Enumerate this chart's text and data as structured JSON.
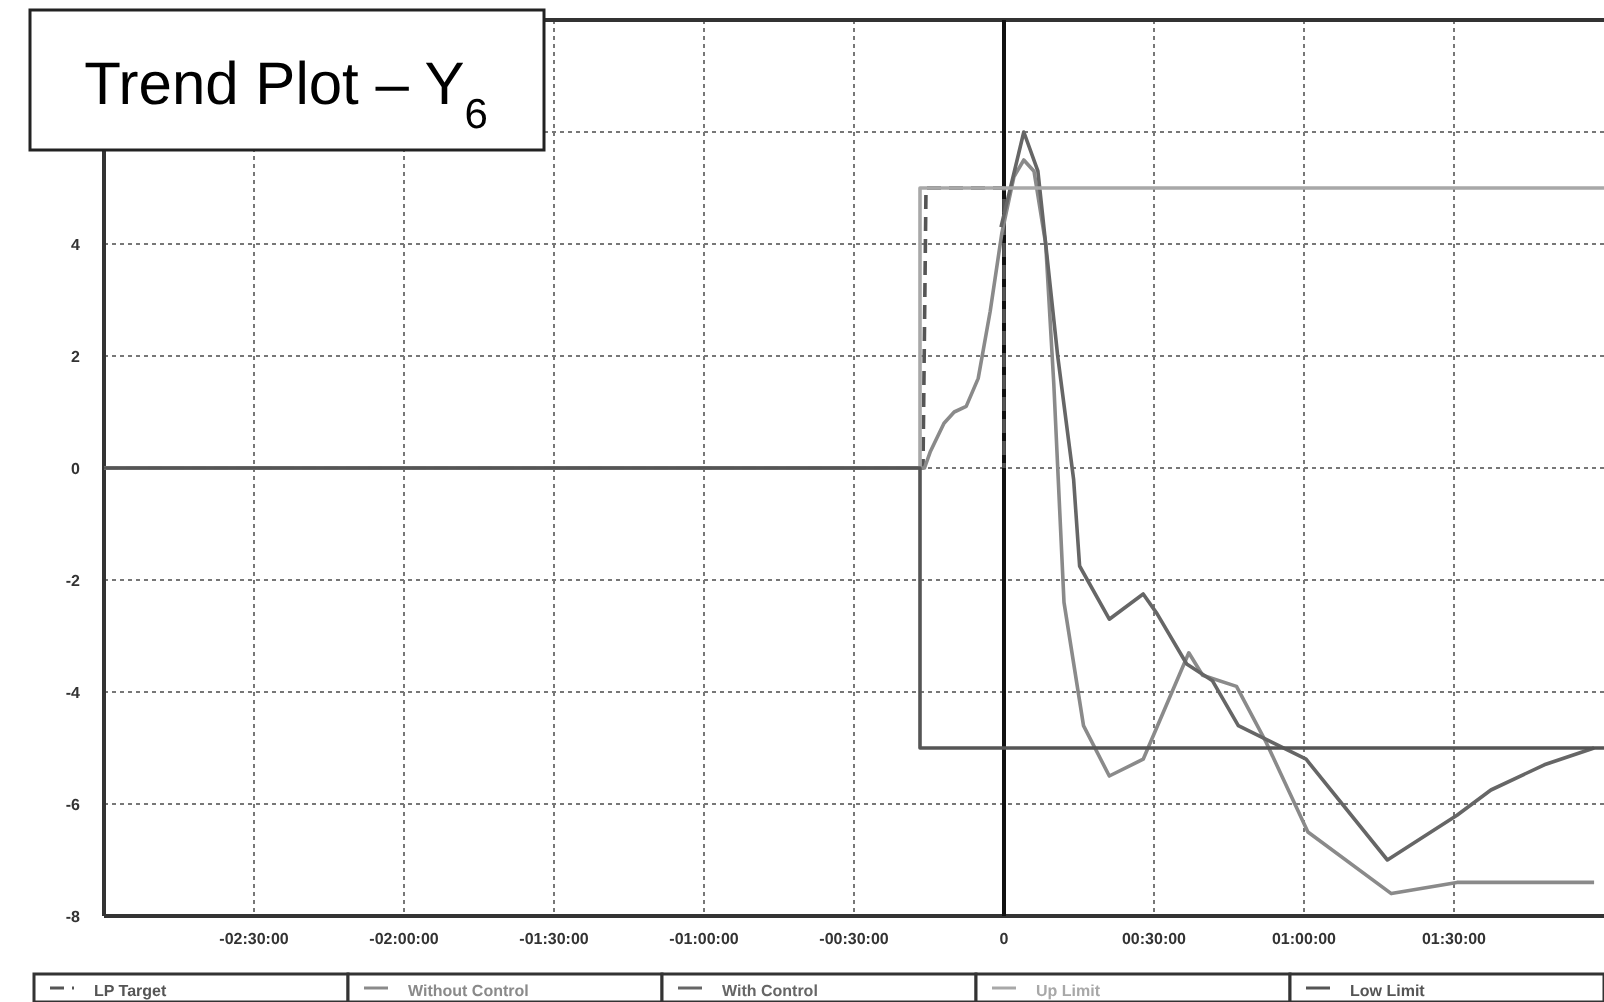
{
  "chart_data": {
    "type": "line",
    "title": "Trend Plot – Y$_{6}$",
    "xlim": [
      -3,
      2
    ],
    "xticks": [
      {
        "value": -2.5,
        "label": "-02:30:00"
      },
      {
        "value": -2,
        "label": "-02:00:00"
      },
      {
        "value": -1.5,
        "label": "-01:30:00"
      },
      {
        "value": -1,
        "label": "-01:00:00"
      },
      {
        "value": -0.5,
        "label": "-00:30:00"
      },
      0,
      {
        "value": 0.5,
        "label": "00:30:00"
      },
      {
        "value": 1,
        "label": "01:00:00"
      },
      {
        "value": 1.5,
        "label": "01:30:00"
      }
    ],
    "ylim": [
      -8,
      8
    ],
    "yticks": [
      -8,
      -6,
      -4,
      -2,
      0,
      2,
      4,
      {
        "value": 6,
        "label": null
      }
    ],
    "grid": true,
    "legend": "bottom",
    "marker": "none",
    "ref_lines": [
      {
        "axis": "x",
        "value": 0,
        "color": "#111111"
      }
    ],
    "series": [
      {
        "name": "LP Target",
        "color": "#555555",
        "line_style": "dashed",
        "x": [
          -3,
          -0.27,
          -0.26,
          0,
          0
        ],
        "values": [
          0,
          0,
          5,
          5,
          0
        ]
      },
      {
        "name": "Without Control",
        "color": "#8a8a8a",
        "x": [
          -3,
          -0.265,
          -0.245,
          -0.2,
          -0.166,
          -0.126,
          -0.086,
          -0.046,
          -0.007,
          0.033,
          0.066,
          0.1,
          0.139,
          0.166,
          0.2,
          0.265,
          0.351,
          0.464,
          0.616,
          0.662,
          0.775,
          0.874,
          1.013,
          1.291,
          1.51,
          1.967
        ],
        "values": [
          0,
          0,
          0.3,
          0.8,
          1.0,
          1.1,
          1.6,
          2.8,
          4.2,
          5.2,
          5.5,
          5.3,
          4,
          1.5,
          -2.4,
          -4.6,
          -5.5,
          -5.2,
          -3.3,
          -3.7,
          -3.9,
          -4.9,
          -6.5,
          -7.6,
          -7.4,
          -7.4
        ]
      },
      {
        "name": "With Control",
        "color": "#666666",
        "x": [
          -0.01,
          0.066,
          0.113,
          0.179,
          0.232,
          0.252,
          0.351,
          0.464,
          0.51,
          0.609,
          0.695,
          0.781,
          0.894,
          1.007,
          1.278,
          1.51,
          1.623,
          1.801,
          1.967
        ],
        "values": [
          4.3,
          6.0,
          5.3,
          2,
          -0.2,
          -1.75,
          -2.7,
          -2.25,
          -2.6,
          -3.5,
          -3.8,
          -4.6,
          -4.9,
          -5.2,
          -7.0,
          -6.2,
          -5.75,
          -5.3,
          -5.0
        ]
      },
      {
        "name": "Up Limit",
        "color": "#a8a8a8",
        "x": [
          -3,
          -0.28,
          -0.28,
          2
        ],
        "values": [
          0,
          0,
          5,
          5
        ]
      },
      {
        "name": "Low Limit",
        "color": "#555555",
        "x": [
          -3,
          -0.28,
          -0.28,
          2
        ],
        "values": [
          0,
          0,
          -5,
          -5
        ]
      }
    ]
  }
}
